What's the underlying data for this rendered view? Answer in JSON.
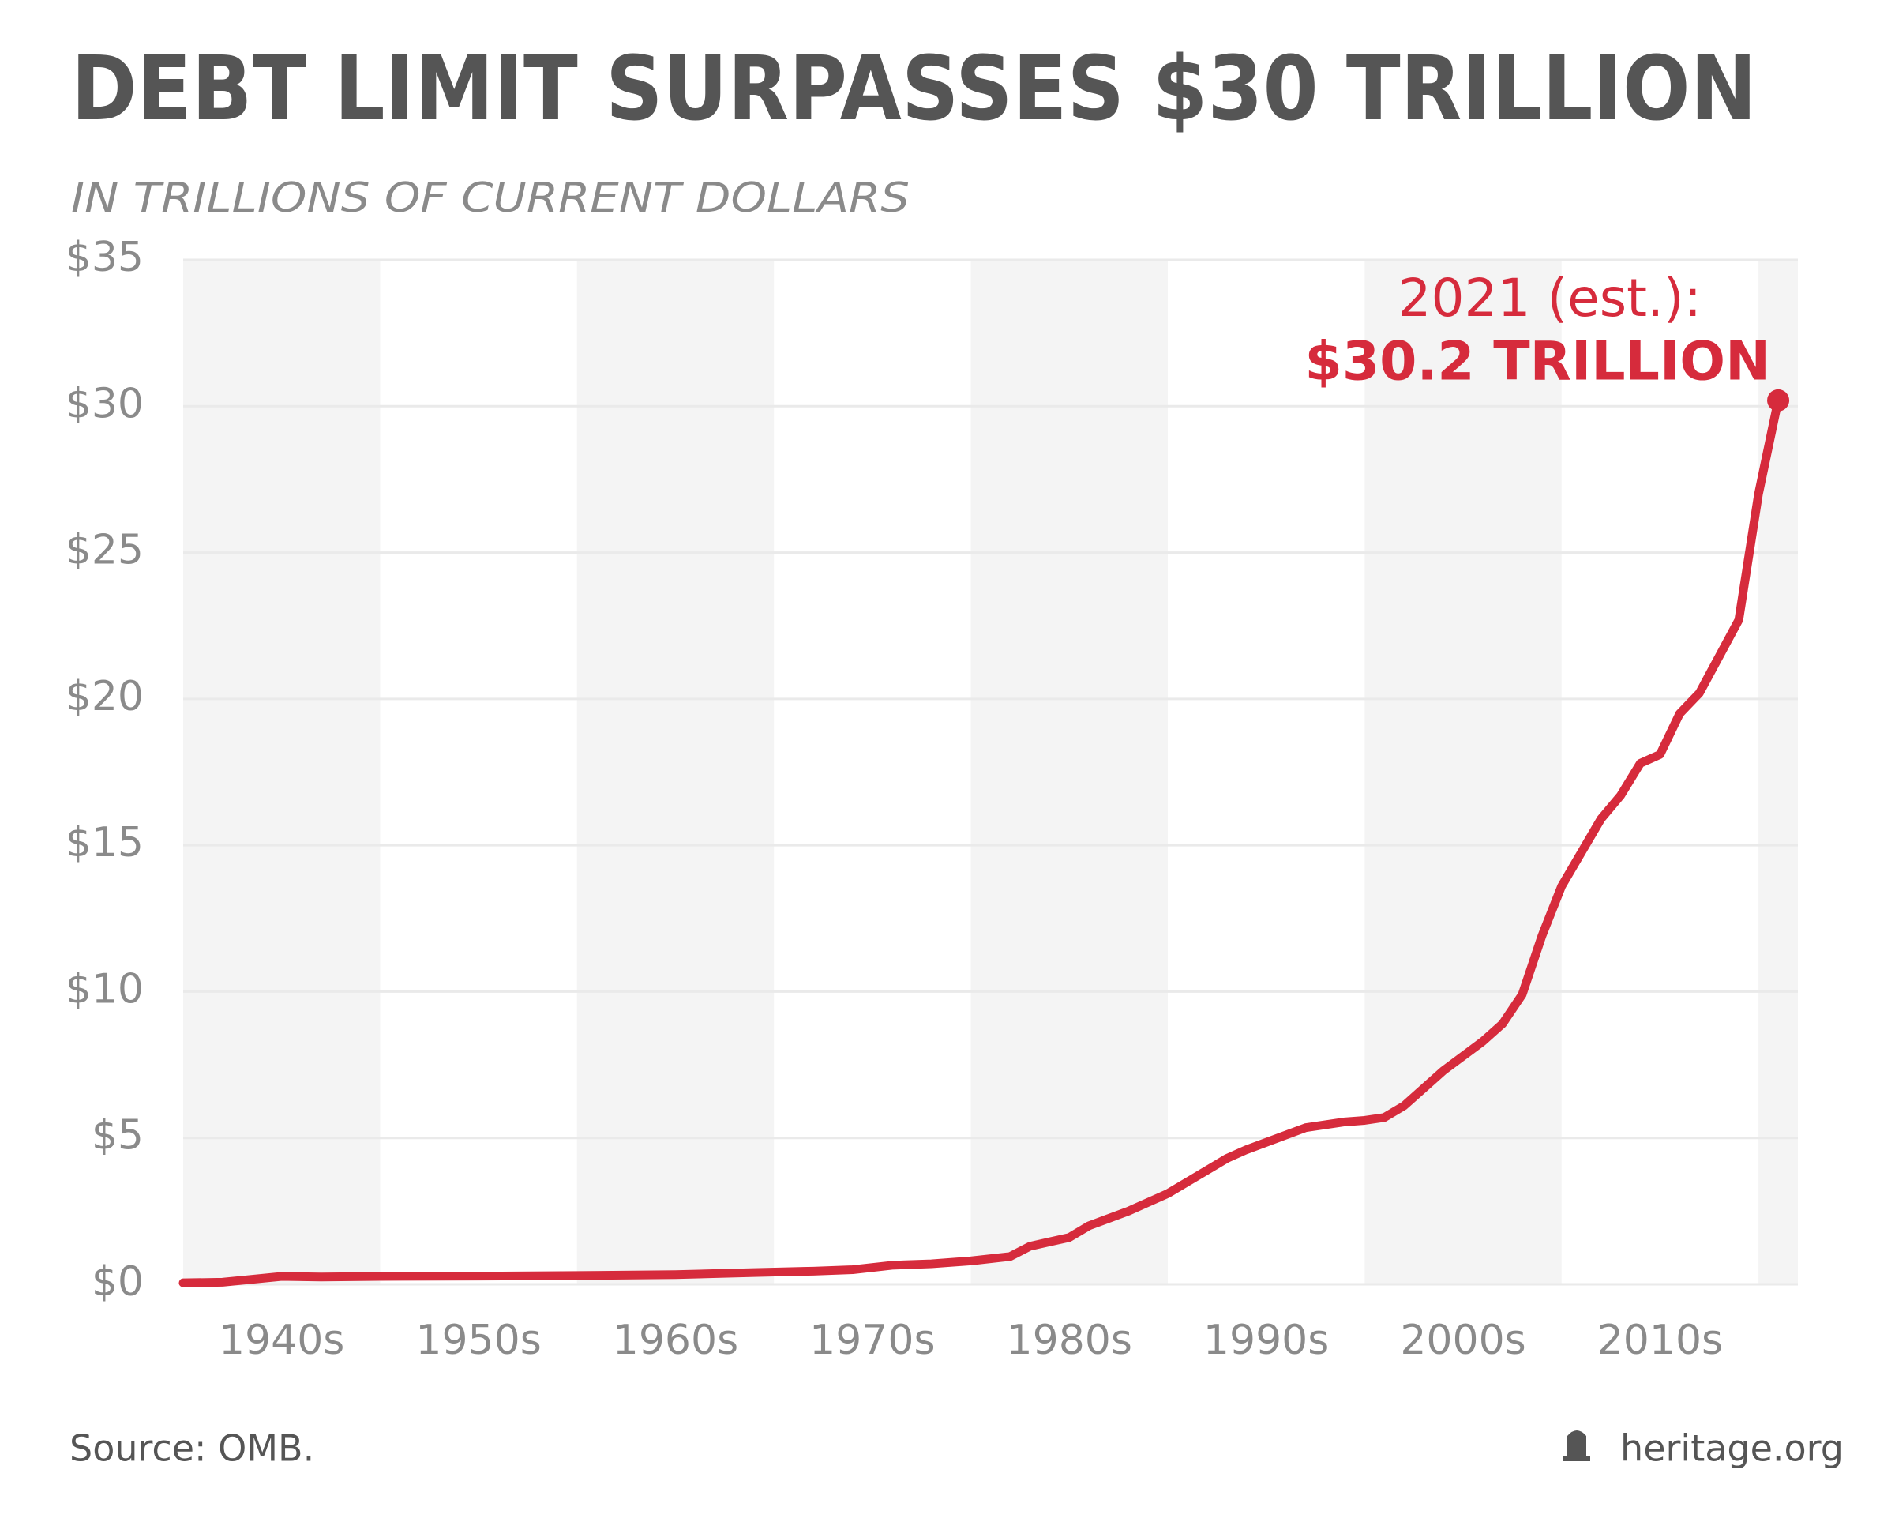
{
  "chart_data": {
    "type": "line",
    "title": "DEBT LIMIT SURPASSES $30 TRILLION",
    "subtitle": "IN TRILLIONS OF CURRENT DOLLARS",
    "source": "Source: OMB.",
    "credit": "heritage.org",
    "annotations": [
      "2021 (est.):",
      "$30.2 TRILLION"
    ],
    "x": [
      1940,
      1942,
      1945,
      1947,
      1950,
      1955,
      1960,
      1965,
      1969,
      1972,
      1974,
      1976,
      1978,
      1980,
      1982,
      1983,
      1984,
      1985,
      1986,
      1988,
      1989,
      1990,
      1991,
      1993,
      1994,
      1996,
      1997,
      1999,
      2000,
      2001,
      2002,
      2004,
      2006,
      2007,
      2008,
      2009,
      2010,
      2012,
      2013,
      2014,
      2015,
      2016,
      2017,
      2019,
      2020,
      2021
    ],
    "series": [
      {
        "name": "Debt limit",
        "color": "#d62b3c",
        "values": [
          0.05,
          0.07,
          0.27,
          0.25,
          0.27,
          0.28,
          0.3,
          0.33,
          0.4,
          0.45,
          0.5,
          0.65,
          0.7,
          0.8,
          0.95,
          1.3,
          1.45,
          1.6,
          2.0,
          2.5,
          2.8,
          3.1,
          3.5,
          4.3,
          4.6,
          5.1,
          5.35,
          5.55,
          5.6,
          5.7,
          6.1,
          7.3,
          8.3,
          8.9,
          9.9,
          11.9,
          13.6,
          15.9,
          16.7,
          17.8,
          18.1,
          19.5,
          20.2,
          22.7,
          27,
          30.2
        ]
      }
    ],
    "xlim": [
      1940,
      2022
    ],
    "xticks": [
      {
        "value": 1945,
        "label": "1940s"
      },
      {
        "value": 1955,
        "label": "1950s"
      },
      {
        "value": 1965,
        "label": "1960s"
      },
      {
        "value": 1975,
        "label": "1970s"
      },
      {
        "value": 1985,
        "label": "1980s"
      },
      {
        "value": 1995,
        "label": "1990s"
      },
      {
        "value": 2005,
        "label": "2000s"
      },
      {
        "value": 2015,
        "label": "2010s"
      }
    ],
    "ylim": [
      0,
      35
    ],
    "yticks": [
      {
        "value": 0,
        "label": "$0"
      },
      {
        "value": 5,
        "label": "$5"
      },
      {
        "value": 10,
        "label": "$10"
      },
      {
        "value": 15,
        "label": "$15"
      },
      {
        "value": 20,
        "label": "$20"
      },
      {
        "value": 25,
        "label": "$25"
      },
      {
        "value": 30,
        "label": "$30"
      },
      {
        "value": 35,
        "label": "$35"
      }
    ],
    "grid": true
  }
}
